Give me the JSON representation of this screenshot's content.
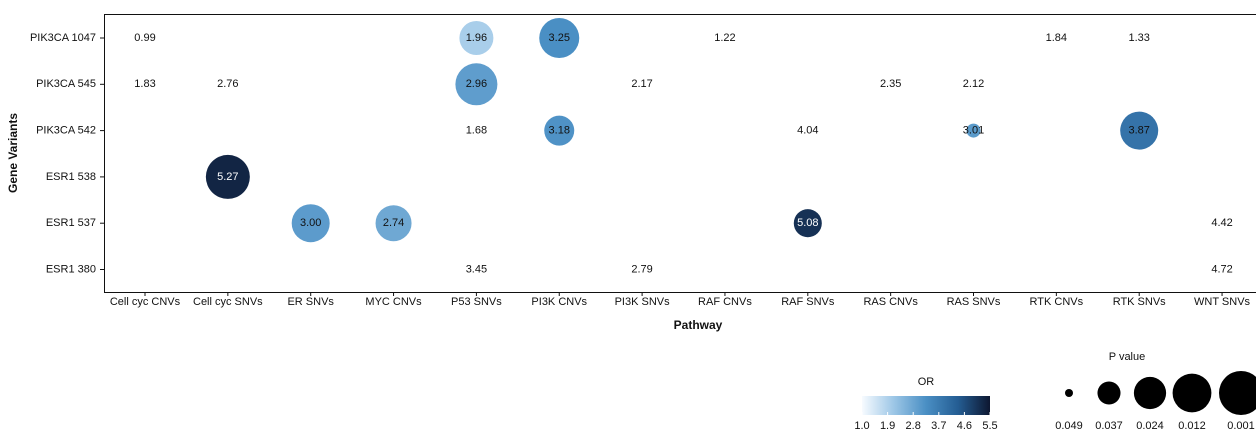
{
  "chart_data": {
    "type": "bubble",
    "x_label": "Pathway",
    "y_label": "Gene Variants",
    "categories": [
      "Cell cyc CNVs",
      "Cell cyc SNVs",
      "ER SNVs",
      "MYC CNVs",
      "P53 SNVs",
      "PI3K CNVs",
      "PI3K SNVs",
      "RAF CNVs",
      "RAF SNVs",
      "RAS CNVs",
      "RAS SNVs",
      "RTK CNVs",
      "RTK SNVs",
      "WNT SNVs"
    ],
    "rows": [
      "PIK3CA 1047",
      "PIK3CA 545",
      "PIK3CA 542",
      "ESR1 538",
      "ESR1 537",
      "ESR1 380"
    ],
    "points": {
      "x": [
        "Cell cyc CNVs",
        "P53 SNVs",
        "PI3K CNVs",
        "RAF CNVs",
        "RTK CNVs",
        "RTK SNVs",
        "Cell cyc CNVs",
        "Cell cyc SNVs",
        "P53 SNVs",
        "PI3K SNVs",
        "RAS CNVs",
        "RAS SNVs",
        "P53 SNVs",
        "PI3K CNVs",
        "RAF SNVs",
        "RAS SNVs",
        "RTK SNVs",
        "Cell cyc SNVs",
        "ER SNVs",
        "MYC CNVs",
        "RAF SNVs",
        "WNT SNVs",
        "P53 SNVs",
        "PI3K SNVs",
        "WNT SNVs"
      ],
      "y": [
        "PIK3CA 1047",
        "PIK3CA 1047",
        "PIK3CA 1047",
        "PIK3CA 1047",
        "PIK3CA 1047",
        "PIK3CA 1047",
        "PIK3CA 545",
        "PIK3CA 545",
        "PIK3CA 545",
        "PIK3CA 545",
        "PIK3CA 545",
        "PIK3CA 545",
        "PIK3CA 542",
        "PIK3CA 542",
        "PIK3CA 542",
        "PIK3CA 542",
        "PIK3CA 542",
        "ESR1 538",
        "ESR1 537",
        "ESR1 537",
        "ESR1 537",
        "ESR1 537",
        "ESR1 380",
        "ESR1 380",
        "ESR1 380"
      ],
      "values": [
        0.99,
        1.96,
        3.25,
        1.22,
        1.84,
        1.33,
        1.83,
        2.76,
        2.96,
        2.17,
        2.35,
        2.12,
        1.68,
        3.18,
        4.04,
        3.01,
        3.87,
        5.27,
        3.0,
        2.74,
        5.08,
        4.42,
        3.45,
        2.79,
        4.72
      ],
      "value_labels": [
        "0.99",
        "1.96",
        "3.25",
        "1.22",
        "1.84",
        "1.33",
        "1.83",
        "2.76",
        "2.96",
        "2.17",
        "2.35",
        "2.12",
        "1.68",
        "3.18",
        "4.04",
        "3.01",
        "3.87",
        "5.27",
        "3.00",
        "2.74",
        "5.08",
        "4.42",
        "3.45",
        "2.79",
        "4.72"
      ],
      "p_values": [
        null,
        0.021,
        0.0096,
        null,
        null,
        null,
        null,
        null,
        0.0054,
        null,
        null,
        null,
        null,
        0.0276,
        null,
        0.0456,
        0.0136,
        0.001,
        0.0136,
        0.0174,
        0.0305,
        null,
        null,
        null,
        null
      ]
    },
    "color_legend": {
      "title": "OR",
      "lim": [
        1,
        5.5
      ],
      "ticks": [
        {
          "value": 1,
          "label": "1.0"
        },
        1.9,
        2.8,
        3.7,
        4.6,
        5.5
      ],
      "colors": [
        "#f7fbff",
        "#9cc6e6",
        "#4a8fc4",
        "#245d93",
        "#0d1730"
      ]
    },
    "size_legend": {
      "title": "P value",
      "values": [
        0.049,
        0.037,
        0.024,
        0.012,
        0.001
      ]
    }
  }
}
